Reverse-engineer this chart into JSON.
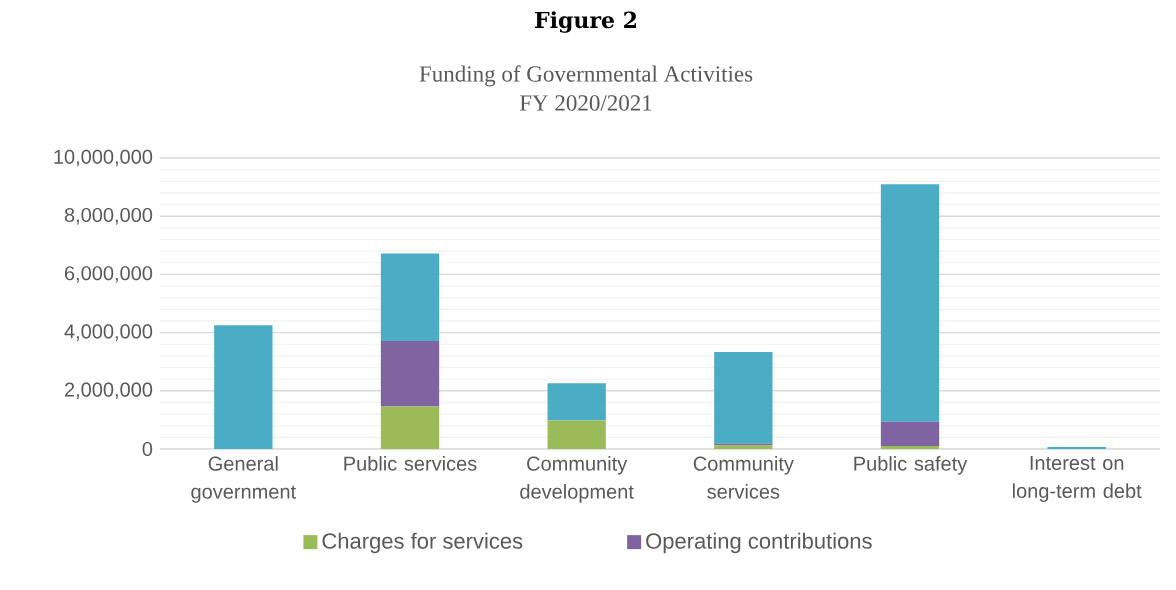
{
  "chart_data": {
    "type": "bar",
    "title": "Funding of Governmental Activities",
    "subtitle": "FY 2020/2021",
    "annotations": [
      "Figure 2"
    ],
    "categories": [
      "General government",
      "Public services",
      "Community development",
      "Community services",
      "Public safety",
      "Interest on long-term debt"
    ],
    "stacked": true,
    "series": [
      {
        "name": "Charges for services",
        "color": "#9bbb59",
        "values": [
          0,
          1460000,
          980000,
          130000,
          100000,
          0
        ]
      },
      {
        "name": "Operating contributions",
        "color": "#8064a2",
        "values": [
          0,
          2250000,
          0,
          50000,
          840000,
          0
        ]
      },
      {
        "color": "#4bacc6",
        "values": [
          4250000,
          3010000,
          1280000,
          3150000,
          8160000,
          70000
        ]
      }
    ],
    "ylim": [
      0,
      10000000
    ],
    "yticks": [
      {
        "value": 0,
        "label": "0"
      },
      {
        "value": 2000000,
        "label": "2,000,000"
      },
      {
        "value": 4000000,
        "label": "4,000,000"
      },
      {
        "value": 6000000,
        "label": "6,000,000"
      },
      {
        "value": 8000000,
        "label": "8,000,000"
      },
      {
        "value": 10000000,
        "label": "10,000,000"
      }
    ],
    "grid": true,
    "legend": "bottom"
  }
}
